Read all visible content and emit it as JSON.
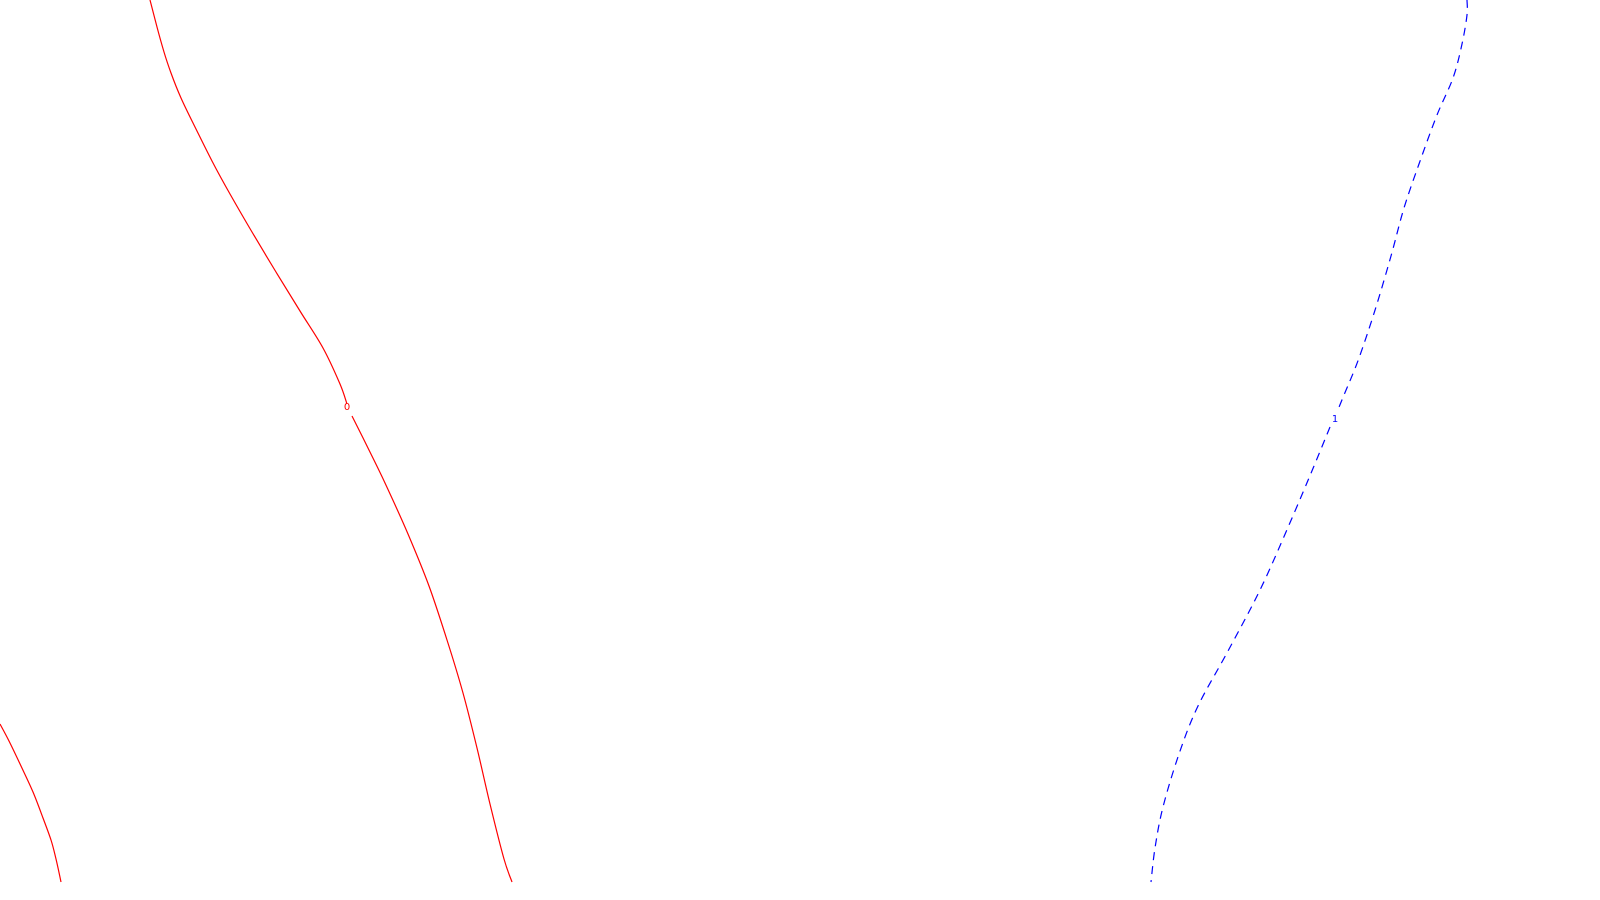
{
  "chart_data": {
    "type": "line",
    "title": "",
    "xlabel": "",
    "ylabel": "",
    "grid": false,
    "legend": "none",
    "series": [
      {
        "level_label": "0",
        "color": "#ff0000",
        "dash": "solid",
        "segments": [
          [
            [
              150,
              0
            ],
            [
              157,
              27
            ],
            [
              164,
              52
            ],
            [
              171,
              73
            ],
            [
              181,
              98
            ],
            [
              195,
              127
            ],
            [
              212,
              161
            ],
            [
              230,
              194
            ],
            [
              252,
              232
            ],
            [
              276,
              272
            ],
            [
              300,
              311
            ],
            [
              323,
              348
            ],
            [
              340,
              384
            ],
            [
              347,
              404
            ]
          ],
          [
            [
              352,
              416
            ],
            [
              367,
              446
            ],
            [
              385,
              483
            ],
            [
              408,
              534
            ],
            [
              429,
              586
            ],
            [
              447,
              640
            ],
            [
              463,
              693
            ],
            [
              477,
              748
            ],
            [
              490,
              804
            ],
            [
              504,
              859
            ],
            [
              512,
              882
            ]
          ]
        ]
      },
      {
        "level_label": "0",
        "color": "#ff0000",
        "dash": "solid",
        "segments": [
          [
            [
              0,
              724
            ],
            [
              9,
              741
            ],
            [
              21,
              766
            ],
            [
              33,
              792
            ],
            [
              43,
              818
            ],
            [
              51,
              840
            ],
            [
              56,
              859
            ],
            [
              61,
              882
            ]
          ]
        ]
      },
      {
        "level_label": "1",
        "color": "#0000ff",
        "dash": "dashed",
        "segments": [
          [
            [
              1467,
              0
            ],
            [
              1467,
              15
            ],
            [
              1462,
              44
            ],
            [
              1453,
              78
            ],
            [
              1437,
              115
            ],
            [
              1419,
              164
            ],
            [
              1404,
              208
            ],
            [
              1391,
              256
            ],
            [
              1376,
              307
            ],
            [
              1359,
              358
            ],
            [
              1344,
              395
            ],
            [
              1337,
              412
            ]
          ],
          [
            [
              1330,
              427
            ],
            [
              1314,
              466
            ],
            [
              1289,
              525
            ],
            [
              1260,
              590
            ],
            [
              1228,
              651
            ],
            [
              1198,
              706
            ],
            [
              1179,
              754
            ],
            [
              1163,
              807
            ],
            [
              1155,
              848
            ],
            [
              1151,
              882
            ]
          ]
        ]
      }
    ],
    "labels": [
      {
        "text": "0",
        "at": [
          347,
          407
        ],
        "color": "#ff0000"
      },
      {
        "text": "1",
        "at": [
          1335,
          419
        ],
        "color": "#0000ff"
      }
    ]
  }
}
